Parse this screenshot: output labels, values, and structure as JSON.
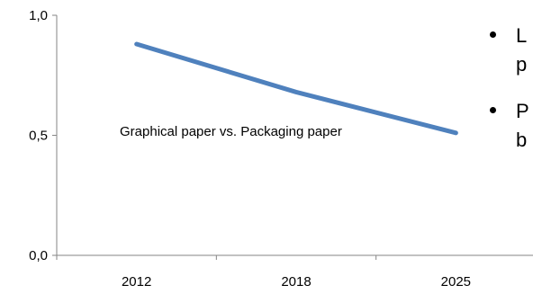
{
  "chart_data": {
    "type": "line",
    "categories": [
      "2012",
      "2018",
      "2025"
    ],
    "series": [
      {
        "values": [
          0.88,
          0.68,
          0.51
        ],
        "color": "#4F81BD"
      }
    ],
    "title": "",
    "xlabel": "",
    "ylabel": "",
    "ylim": [
      0.0,
      1.0
    ],
    "yticks": [
      "0,0",
      "0,5",
      "1,0"
    ],
    "grid": false,
    "annotation": "Graphical paper vs. Packaging paper"
  },
  "bullets": [
    {
      "lines": [
        "L",
        "p"
      ]
    },
    {
      "lines": [
        "P",
        "b"
      ]
    }
  ]
}
